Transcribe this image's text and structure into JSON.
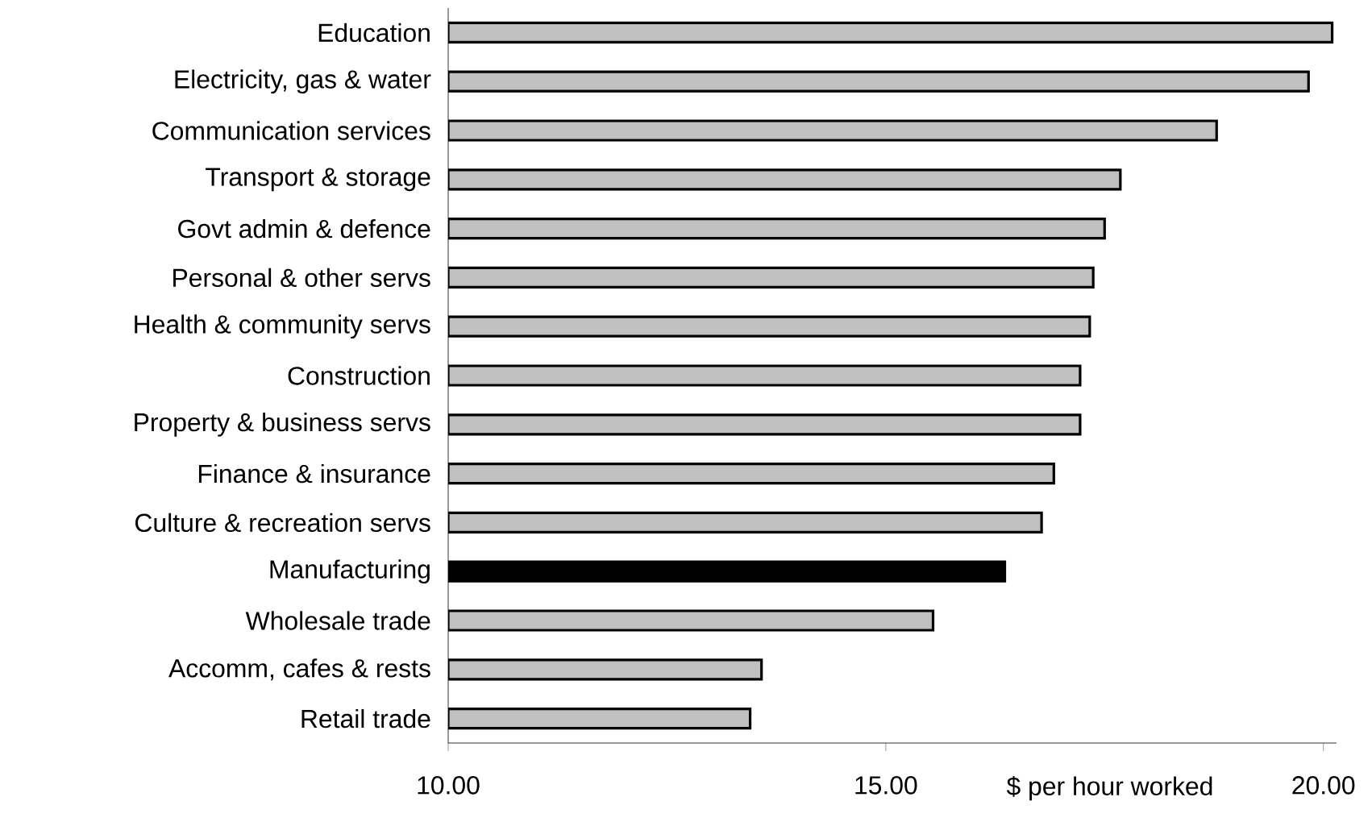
{
  "chart_data": {
    "type": "bar",
    "orientation": "horizontal",
    "xlabel": "$ per hour worked",
    "categories": [
      "Education",
      "Electricity, gas & water",
      "Communication services",
      "Transport & storage",
      "Govt admin & defence",
      "Personal & other servs",
      "Health & community servs",
      "Construction",
      "Property & business servs",
      "Finance & insurance",
      "Culture & recreation servs",
      "Manufacturing",
      "Wholesale trade",
      "Accomm, cafes & rests",
      "Retail trade"
    ],
    "values": [
      20.1,
      19.83,
      18.78,
      17.68,
      17.5,
      17.37,
      17.33,
      17.22,
      17.22,
      16.92,
      16.78,
      16.36,
      15.54,
      13.58,
      13.45
    ],
    "colors": [
      "#c0c0c0",
      "#c0c0c0",
      "#c0c0c0",
      "#c0c0c0",
      "#c0c0c0",
      "#c0c0c0",
      "#c0c0c0",
      "#c0c0c0",
      "#c0c0c0",
      "#c0c0c0",
      "#c0c0c0",
      "#000000",
      "#c0c0c0",
      "#c0c0c0",
      "#c0c0c0"
    ],
    "xlim": [
      10,
      20.15
    ],
    "xticks": [
      {
        "value": 10,
        "label": "10.00"
      },
      {
        "value": 15,
        "label": "15.00"
      },
      {
        "value": 20,
        "label": "20.00"
      }
    ],
    "grid": false
  }
}
